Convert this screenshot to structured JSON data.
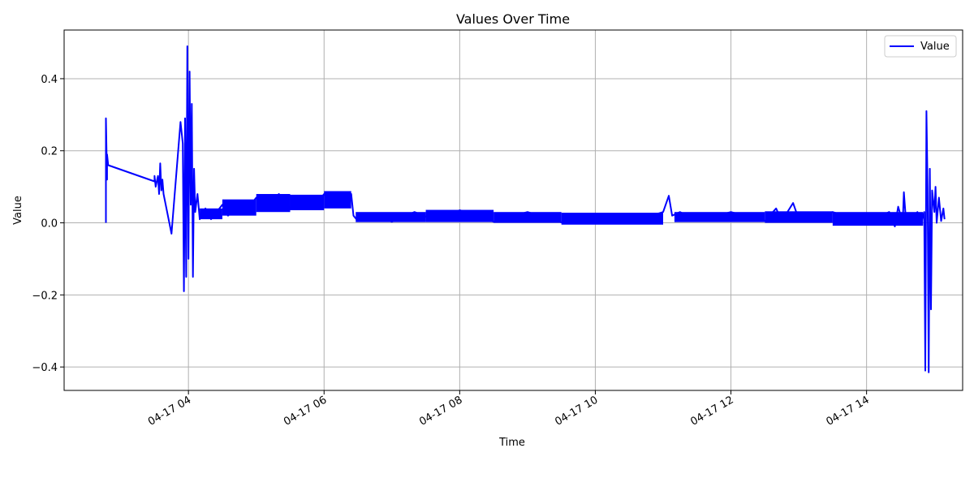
{
  "chart_data": {
    "type": "line",
    "title": "Values Over Time",
    "xlabel": "Time",
    "ylabel": "Value",
    "grid": true,
    "legend_placement": "top-right",
    "xlim": [
      "04-17 02:10",
      "04-17 15:25"
    ],
    "ylim": [
      -0.465,
      0.535
    ],
    "x_ticks": [
      {
        "value": "04-17 04:00",
        "label": "04-17 04"
      },
      {
        "value": "04-17 06:00",
        "label": "04-17 06"
      },
      {
        "value": "04-17 08:00",
        "label": "04-17 08"
      },
      {
        "value": "04-17 10:00",
        "label": "04-17 10"
      },
      {
        "value": "04-17 12:00",
        "label": "04-17 12"
      },
      {
        "value": "04-17 14:00",
        "label": "04-17 14"
      }
    ],
    "y_ticks": [
      {
        "value": -0.4,
        "label": "−0.4"
      },
      {
        "value": -0.2,
        "label": "−0.2"
      },
      {
        "value": 0.0,
        "label": "0.0"
      },
      {
        "value": 0.2,
        "label": "0.2"
      },
      {
        "value": 0.4,
        "label": "0.4"
      }
    ],
    "colors": {
      "series": "#0000ff",
      "grid": "#b0b0b0",
      "axis": "#000000"
    },
    "series": [
      {
        "name": "Value",
        "color": "#0000ff",
        "points": [
          [
            "04-17 02:47",
            0.0
          ],
          [
            "04-17 02:47",
            0.29
          ],
          [
            "04-17 02:48",
            0.12
          ],
          [
            "04-17 02:48",
            0.19
          ],
          [
            "04-17 02:49",
            0.16
          ],
          [
            "04-17 03:30",
            0.115
          ],
          [
            "04-17 03:30",
            0.13
          ],
          [
            "04-17 03:31",
            0.1
          ],
          [
            "04-17 03:33",
            0.13
          ],
          [
            "04-17 03:34",
            0.08
          ],
          [
            "04-17 03:35",
            0.165
          ],
          [
            "04-17 03:36",
            0.09
          ],
          [
            "04-17 03:37",
            0.12
          ],
          [
            "04-17 03:38",
            0.08
          ],
          [
            "04-17 03:45",
            -0.03
          ],
          [
            "04-17 03:53",
            0.28
          ],
          [
            "04-17 03:55",
            0.22
          ],
          [
            "04-17 03:56",
            -0.19
          ],
          [
            "04-17 03:57",
            0.29
          ],
          [
            "04-17 03:58",
            -0.15
          ],
          [
            "04-17 03:59",
            0.49
          ],
          [
            "04-17 04:00",
            -0.1
          ],
          [
            "04-17 04:01",
            0.42
          ],
          [
            "04-17 04:02",
            0.05
          ],
          [
            "04-17 04:03",
            0.33
          ],
          [
            "04-17 04:04",
            -0.15
          ],
          [
            "04-17 04:05",
            0.15
          ],
          [
            "04-17 04:06",
            0.03
          ],
          [
            "04-17 04:08",
            0.08
          ],
          [
            "04-17 04:10",
            0.01
          ],
          [
            "04-17 04:15",
            0.04
          ],
          [
            "04-17 04:20",
            0.01
          ],
          [
            "04-17 04:30",
            0.05
          ],
          [
            "04-17 04:35",
            0.02
          ],
          [
            "04-17 04:45",
            0.06
          ],
          [
            "04-17 04:50",
            0.03
          ],
          [
            "04-17 05:00",
            0.07
          ],
          [
            "04-17 05:10",
            0.035
          ],
          [
            "04-17 05:20",
            0.08
          ],
          [
            "04-17 05:30",
            0.04
          ],
          [
            "04-17 05:40",
            0.075
          ],
          [
            "04-17 05:50",
            0.04
          ],
          [
            "04-17 06:00",
            0.08
          ],
          [
            "04-17 06:10",
            0.045
          ],
          [
            "04-17 06:20",
            0.085
          ],
          [
            "04-17 06:22",
            0.06
          ],
          [
            "04-17 06:24",
            0.08
          ],
          [
            "04-17 06:26",
            0.02
          ],
          [
            "04-17 06:30",
            0.005
          ],
          [
            "04-17 06:40",
            0.025
          ],
          [
            "04-17 07:00",
            0.003
          ],
          [
            "04-17 07:20",
            0.03
          ],
          [
            "04-17 07:40",
            0.005
          ],
          [
            "04-17 08:00",
            0.035
          ],
          [
            "04-17 08:30",
            0.003
          ],
          [
            "04-17 09:00",
            0.03
          ],
          [
            "04-17 09:30",
            0.001
          ],
          [
            "04-17 10:00",
            0.025
          ],
          [
            "04-17 10:30",
            0.0
          ],
          [
            "04-17 11:00",
            0.03
          ],
          [
            "04-17 11:05",
            0.075
          ],
          [
            "04-17 11:08",
            0.02
          ],
          [
            "04-17 11:15",
            0.03
          ],
          [
            "04-17 11:30",
            0.005
          ],
          [
            "04-17 12:00",
            0.03
          ],
          [
            "04-17 12:30",
            0.005
          ],
          [
            "04-17 12:40",
            0.04
          ],
          [
            "04-17 12:45",
            0.005
          ],
          [
            "04-17 12:55",
            0.055
          ],
          [
            "04-17 13:00",
            0.01
          ],
          [
            "04-17 13:30",
            0.03
          ],
          [
            "04-17 14:00",
            0.0
          ],
          [
            "04-17 14:20",
            0.03
          ],
          [
            "04-17 14:25",
            -0.01
          ],
          [
            "04-17 14:28",
            0.045
          ],
          [
            "04-17 14:32",
            0.0
          ],
          [
            "04-17 14:33",
            0.085
          ],
          [
            "04-17 14:35",
            0.0
          ],
          [
            "04-17 14:45",
            0.03
          ],
          [
            "04-17 14:48",
            -0.005
          ],
          [
            "04-17 14:51",
            0.03
          ],
          [
            "04-17 14:52",
            -0.41
          ],
          [
            "04-17 14:53",
            0.31
          ],
          [
            "04-17 14:54",
            0.1
          ],
          [
            "04-17 14:55",
            -0.415
          ],
          [
            "04-17 14:56",
            0.15
          ],
          [
            "04-17 14:57",
            -0.24
          ],
          [
            "04-17 14:58",
            0.09
          ],
          [
            "04-17 15:00",
            0.03
          ],
          [
            "04-17 15:01",
            0.1
          ],
          [
            "04-17 15:02",
            0.0
          ],
          [
            "04-17 15:04",
            0.07
          ],
          [
            "04-17 15:06",
            0.005
          ],
          [
            "04-17 15:08",
            0.04
          ],
          [
            "04-17 15:09",
            0.01
          ]
        ],
        "bands": [
          {
            "start": "04-17 04:10",
            "end": "04-17 04:30",
            "low": 0.01,
            "high": 0.04
          },
          {
            "start": "04-17 04:30",
            "end": "04-17 05:00",
            "low": 0.02,
            "high": 0.065
          },
          {
            "start": "04-17 05:00",
            "end": "04-17 05:30",
            "low": 0.03,
            "high": 0.08
          },
          {
            "start": "04-17 05:30",
            "end": "04-17 06:00",
            "low": 0.035,
            "high": 0.078
          },
          {
            "start": "04-17 06:00",
            "end": "04-17 06:24",
            "low": 0.04,
            "high": 0.088
          },
          {
            "start": "04-17 06:28",
            "end": "04-17 07:30",
            "low": 0.002,
            "high": 0.03
          },
          {
            "start": "04-17 07:30",
            "end": "04-17 08:30",
            "low": 0.002,
            "high": 0.036
          },
          {
            "start": "04-17 08:30",
            "end": "04-17 09:30",
            "low": 0.0,
            "high": 0.03
          },
          {
            "start": "04-17 09:30",
            "end": "04-17 11:00",
            "low": -0.005,
            "high": 0.028
          },
          {
            "start": "04-17 11:10",
            "end": "04-17 12:30",
            "low": 0.002,
            "high": 0.03
          },
          {
            "start": "04-17 12:30",
            "end": "04-17 13:30",
            "low": 0.0,
            "high": 0.032
          },
          {
            "start": "04-17 13:30",
            "end": "04-17 14:50",
            "low": -0.008,
            "high": 0.03
          }
        ]
      }
    ]
  }
}
